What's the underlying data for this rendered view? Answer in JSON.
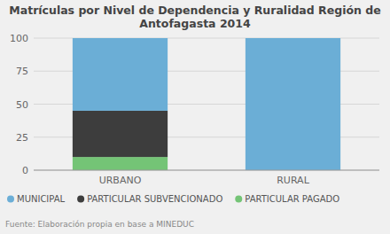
{
  "chart_data": {
    "type": "bar",
    "stacked": true,
    "title": "Matrículas por Nivel de Dependencia y Ruralidad Región de\nAntofagasta 2014",
    "categories": [
      "URBANO",
      "RURAL"
    ],
    "series": [
      {
        "name": "PARTICULAR PAGADO",
        "color": "#74c476",
        "values": [
          10,
          0
        ]
      },
      {
        "name": "PARTICULAR SUBVENCIONADO",
        "color": "#3d3d3d",
        "values": [
          35,
          0
        ]
      },
      {
        "name": "MUNICIPAL",
        "color": "#6baed6",
        "values": [
          55,
          100
        ]
      }
    ],
    "ylim": [
      0,
      100
    ],
    "yticks": [
      0,
      25,
      50,
      75,
      100
    ],
    "grid": true,
    "legend": "bottom",
    "annotations": [
      "Fuente: Elaboración propia en base a MINEDUC"
    ]
  }
}
